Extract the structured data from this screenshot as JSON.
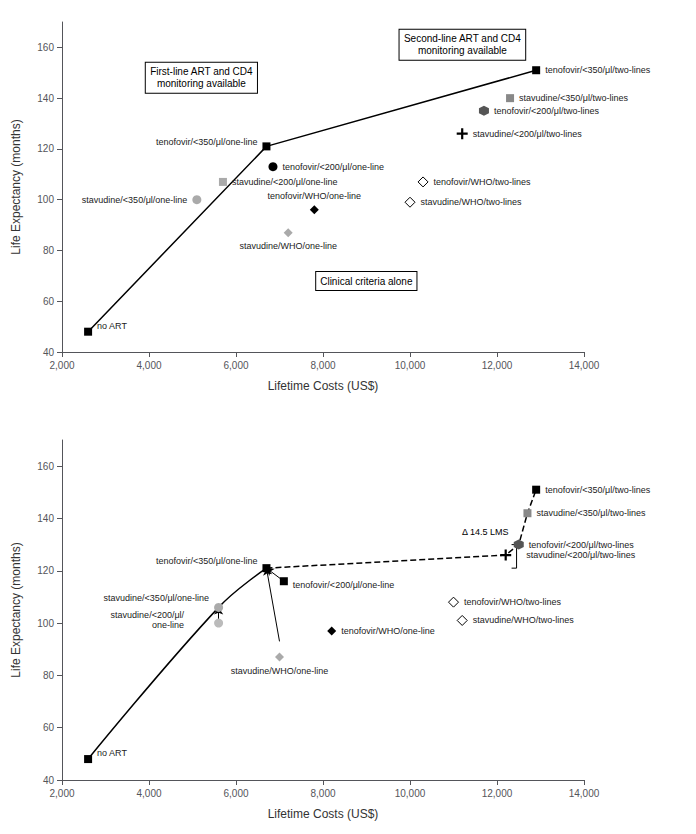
{
  "chart_data": [
    {
      "type": "scatter",
      "xlabel": "Lifetime Costs (US$)",
      "ylabel": "Life Expectancy (months)",
      "xlim": [
        2000,
        14000
      ],
      "ylim": [
        40,
        170
      ],
      "xticks": [
        {
          "value": 2000,
          "label": "2,000"
        },
        {
          "value": 4000,
          "label": "4,000"
        },
        {
          "value": 6000,
          "label": "6,000"
        },
        {
          "value": 8000,
          "label": "8,000"
        },
        {
          "value": 10000,
          "label": "10,000"
        },
        {
          "value": 12000,
          "label": "12,000"
        },
        {
          "value": 14000,
          "label": "14,000"
        }
      ],
      "yticks": [
        40,
        60,
        80,
        100,
        120,
        140,
        160
      ],
      "grid": false,
      "annotations": [
        "First-line ART and CD4\nmonitoring available",
        "Second-line ART and CD4\nmonitoring available",
        "Clinical criteria alone"
      ],
      "series": [
        {
          "type": "line",
          "line_style": "solid",
          "color": "black",
          "x": [
            2600,
            6700,
            12900
          ],
          "values": [
            48,
            121,
            151
          ]
        },
        {
          "type": "scatter",
          "name": "no ART",
          "marker": "square",
          "color": "black",
          "x": [
            2600
          ],
          "values": [
            48
          ]
        },
        {
          "type": "scatter",
          "name": "stavudine/<350/μl/one-line",
          "marker": "circle",
          "color": "#aaaaaa",
          "x": [
            5100
          ],
          "values": [
            100
          ]
        },
        {
          "type": "scatter",
          "name": "tenofovir/<350/μl/one-line",
          "marker": "square",
          "color": "black",
          "x": [
            6700
          ],
          "values": [
            121
          ]
        },
        {
          "type": "scatter",
          "name": "stavudine/<200/μl/one-line",
          "marker": "square",
          "color": "#aaaaaa",
          "x": [
            5700
          ],
          "values": [
            107
          ]
        },
        {
          "type": "scatter",
          "name": "tenofovir/<200/μl/one-line",
          "marker": "circle",
          "color": "black",
          "x": [
            6850
          ],
          "values": [
            113
          ]
        },
        {
          "type": "scatter",
          "name": "stavudine/WHO/one-line",
          "marker": "diamond",
          "color": "#aaaaaa",
          "x": [
            7200
          ],
          "values": [
            87
          ]
        },
        {
          "type": "scatter",
          "name": "tenofovir/WHO/one-line",
          "marker": "diamond",
          "color": "black",
          "x": [
            7800
          ],
          "values": [
            96
          ]
        },
        {
          "type": "scatter",
          "name": "stavudine/WHO/two-lines",
          "marker": "open diamond",
          "color": "black",
          "x": [
            10000
          ],
          "values": [
            99
          ]
        },
        {
          "type": "scatter",
          "name": "tenofovir/WHO/two-lines",
          "marker": "open diamond",
          "color": "black",
          "x": [
            10300
          ],
          "values": [
            107
          ]
        },
        {
          "type": "scatter",
          "name": "stavudine/<200/μl/two-lines",
          "marker": "plus",
          "color": "black",
          "x": [
            11200
          ],
          "values": [
            126
          ]
        },
        {
          "type": "scatter",
          "name": "tenofovir/<200/μl/two-lines",
          "marker": "hexagon",
          "color": "#555555",
          "x": [
            11700
          ],
          "values": [
            135
          ]
        },
        {
          "type": "scatter",
          "name": "stavudine/<350/μl/two-lines",
          "marker": "square",
          "color": "#888888",
          "x": [
            12300
          ],
          "values": [
            140
          ]
        },
        {
          "type": "scatter",
          "name": "tenofovir/<350/μl/two-lines",
          "marker": "square",
          "color": "black",
          "x": [
            12900
          ],
          "values": [
            151
          ]
        }
      ]
    },
    {
      "type": "scatter",
      "xlabel": "Lifetime Costs (US$)",
      "ylabel": "Life Expectancy (months)",
      "xlim": [
        2000,
        14000
      ],
      "ylim": [
        40,
        170
      ],
      "xticks": [
        {
          "value": 2000,
          "label": "2,000"
        },
        {
          "value": 4000,
          "label": "4,000"
        },
        {
          "value": 6000,
          "label": "6,000"
        },
        {
          "value": 8000,
          "label": "8,000"
        },
        {
          "value": 10000,
          "label": "10,000"
        },
        {
          "value": 12000,
          "label": "12,000"
        },
        {
          "value": 14000,
          "label": "14,000"
        }
      ],
      "yticks": [
        40,
        60,
        80,
        100,
        120,
        140,
        160
      ],
      "grid": false,
      "series": [
        {
          "type": "line",
          "line_style": "curved",
          "color": "black",
          "x": [
            2600,
            5600,
            6700
          ],
          "values": [
            48,
            106,
            121
          ]
        },
        {
          "type": "line",
          "line_style": "dashed",
          "color": "black",
          "x": [
            6700,
            12200,
            12500,
            12700,
            12900
          ],
          "values": [
            121,
            126,
            130,
            142,
            151
          ]
        },
        {
          "type": "arrow",
          "color": "black",
          "x": [
            5600,
            5600
          ],
          "values": [
            100,
            106
          ]
        },
        {
          "type": "arrow",
          "color": "black",
          "x": [
            7000,
            6700
          ],
          "values": [
            93,
            121
          ]
        },
        {
          "type": "arrow",
          "color": "black",
          "x": [
            7100,
            6700
          ],
          "values": [
            116,
            121
          ]
        },
        {
          "type": "bracket",
          "name": "Δ 14.5 LMS",
          "color": "black",
          "x": [
            12450,
            12450
          ],
          "values": [
            121,
            130
          ]
        },
        {
          "type": "scatter",
          "name": "no ART",
          "marker": "square",
          "color": "black",
          "x": [
            2600
          ],
          "values": [
            48
          ]
        },
        {
          "type": "scatter",
          "name": "stavudine/<350/μl/one-line",
          "marker": "circle",
          "color": "#aaaaaa",
          "x": [
            5600
          ],
          "values": [
            106
          ]
        },
        {
          "type": "scatter",
          "name": "tenofovir/<350/μl/one-line",
          "marker": "square",
          "color": "black",
          "x": [
            6700
          ],
          "values": [
            121
          ]
        },
        {
          "type": "scatter",
          "name": "stavudine/<200/μl/\none-line",
          "marker": "circle",
          "color": "#bbbbbb",
          "x": [
            5600
          ],
          "values": [
            100
          ]
        },
        {
          "type": "scatter",
          "name": "tenofovir/<200/μl/one-line",
          "marker": "square",
          "color": "black",
          "x": [
            7100
          ],
          "values": [
            116
          ]
        },
        {
          "type": "scatter",
          "name": "stavudine/WHO/one-line",
          "marker": "diamond",
          "color": "#aaaaaa",
          "x": [
            7000
          ],
          "values": [
            87
          ]
        },
        {
          "type": "scatter",
          "name": "tenofovir/WHO/one-line",
          "marker": "diamond",
          "color": "black",
          "x": [
            8200
          ],
          "values": [
            97
          ]
        },
        {
          "type": "scatter",
          "name": "tenofovir/WHO/two-lines",
          "marker": "open diamond",
          "color": "black",
          "x": [
            11000
          ],
          "values": [
            108
          ]
        },
        {
          "type": "scatter",
          "name": "stavudine/WHO/two-lines",
          "marker": "open diamond",
          "color": "black",
          "x": [
            11200
          ],
          "values": [
            101
          ]
        },
        {
          "type": "scatter",
          "name": "stavudine/<200/μl/two-lines",
          "marker": "plus",
          "color": "black",
          "x": [
            12200
          ],
          "values": [
            126
          ]
        },
        {
          "type": "scatter",
          "name": "tenofovir/<200/μl/two-lines",
          "marker": "hexagon",
          "color": "#555555",
          "x": [
            12500
          ],
          "values": [
            130
          ]
        },
        {
          "type": "scatter",
          "name": "stavudine/<350/μl/two-lines",
          "marker": "square",
          "color": "#888888",
          "x": [
            12700
          ],
          "values": [
            142
          ]
        },
        {
          "type": "scatter",
          "name": "tenofovir/<350/μl/two-lines",
          "marker": "square",
          "color": "black",
          "x": [
            12900
          ],
          "values": [
            151
          ]
        }
      ]
    }
  ]
}
